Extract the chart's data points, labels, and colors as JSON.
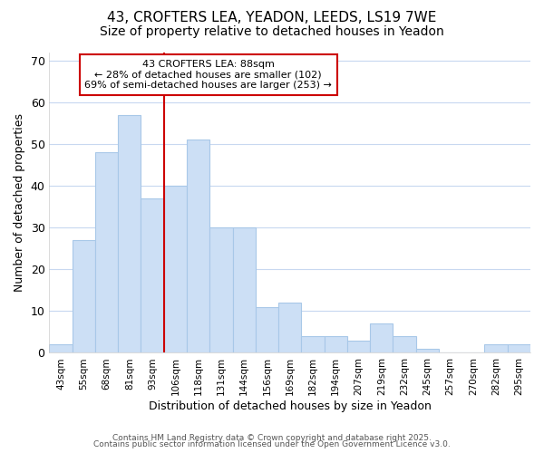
{
  "title_line1": "43, CROFTERS LEA, YEADON, LEEDS, LS19 7WE",
  "title_line2": "Size of property relative to detached houses in Yeadon",
  "xlabel": "Distribution of detached houses by size in Yeadon",
  "ylabel": "Number of detached properties",
  "categories": [
    "43sqm",
    "55sqm",
    "68sqm",
    "81sqm",
    "93sqm",
    "106sqm",
    "118sqm",
    "131sqm",
    "144sqm",
    "156sqm",
    "169sqm",
    "182sqm",
    "194sqm",
    "207sqm",
    "219sqm",
    "232sqm",
    "245sqm",
    "257sqm",
    "270sqm",
    "282sqm",
    "295sqm"
  ],
  "values": [
    2,
    27,
    48,
    57,
    37,
    40,
    51,
    30,
    30,
    11,
    12,
    4,
    4,
    3,
    7,
    4,
    1,
    0,
    0,
    2,
    2
  ],
  "bar_color": "#ccdff5",
  "bar_edge_color": "#a8c8e8",
  "vline_x": 4.5,
  "vline_color": "#cc0000",
  "annotation_text": "43 CROFTERS LEA: 88sqm\n← 28% of detached houses are smaller (102)\n69% of semi-detached houses are larger (253) →",
  "annotation_box_color": "#ffffff",
  "annotation_box_edge": "#cc0000",
  "ylim": [
    0,
    72
  ],
  "yticks": [
    0,
    10,
    20,
    30,
    40,
    50,
    60,
    70
  ],
  "footer_line1": "Contains HM Land Registry data © Crown copyright and database right 2025.",
  "footer_line2": "Contains public sector information licensed under the Open Government Licence v3.0.",
  "bg_color": "#ffffff",
  "plot_bg_color": "#ffffff",
  "title_fontsize": 11,
  "subtitle_fontsize": 10,
  "grid_color": "#c8d8f0"
}
